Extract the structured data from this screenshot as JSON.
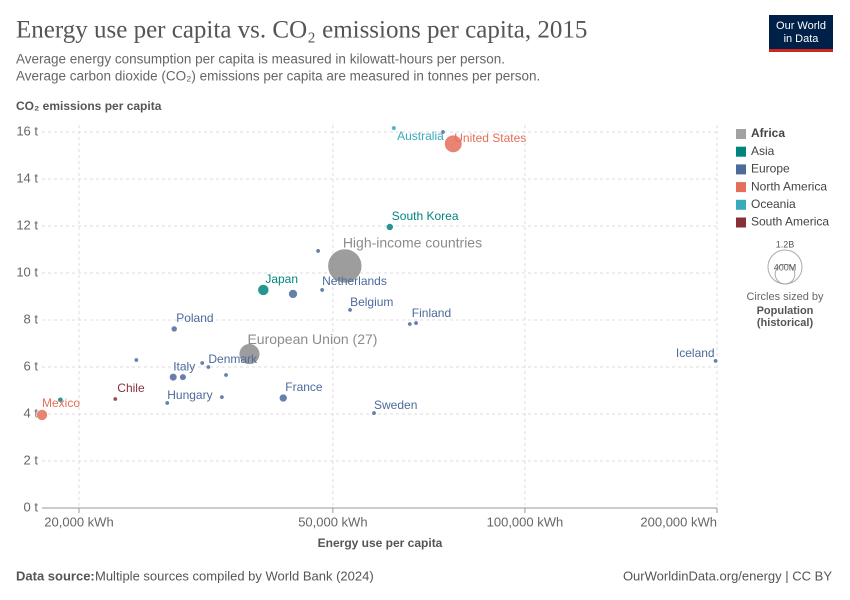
{
  "chart_data": {
    "type": "scatter",
    "title": "Energy use per capita vs. CO₂ emissions per capita, 2015",
    "subtitle": [
      "Average energy consumption per capita is measured in kilowatt-hours per person.",
      "Average carbon dioxide (CO₂) emissions per capita are measured in tonnes per person."
    ],
    "y_label": "CO₂ emissions per capita",
    "x_label": "Energy use per capita",
    "logo": [
      "Our World",
      "in Data"
    ],
    "source_label": "Data source:",
    "source": "Multiple sources compiled by World Bank (2024)",
    "url": "OurWorldinData.org/energy | CC BY",
    "x_scale": "log",
    "grid": true,
    "xlim": [
      17500,
      200000
    ],
    "ylim": [
      0,
      16.3
    ],
    "xticks": [
      {
        "value": 20000,
        "label": "20,000 kWh"
      },
      {
        "value": 50000,
        "label": "50,000 kWh"
      },
      {
        "value": 100000,
        "label": "100,000 kWh"
      },
      {
        "value": 200000,
        "label": "200,000 kWh"
      }
    ],
    "yticks": [
      {
        "value": 0,
        "label": "0 t"
      },
      {
        "value": 2,
        "label": "2 t"
      },
      {
        "value": 4,
        "label": "4 t"
      },
      {
        "value": 6,
        "label": "6 t"
      },
      {
        "value": 8,
        "label": "8 t"
      },
      {
        "value": 10,
        "label": "10 t"
      },
      {
        "value": 12,
        "label": "12 t"
      },
      {
        "value": 14,
        "label": "14 t"
      },
      {
        "value": 16,
        "label": "16 t"
      }
    ],
    "legend_position": "right",
    "series": [
      {
        "name": "Africa",
        "color": "#a2a2a2",
        "x": [],
        "values": [],
        "sizes": [],
        "labels": []
      },
      {
        "name": "Asia",
        "color": "#00847e",
        "x": [
          61400,
          38900,
          18700
        ],
        "values": [
          11.96,
          9.28,
          4.6
        ],
        "sizes": [
          51000000,
          127000000,
          30000000
        ],
        "labels": [
          "South Korea",
          "Japan",
          null
        ]
      },
      {
        "name": "Europe",
        "color": "#4c6a9c",
        "x": [
          74400,
          47400,
          48100,
          43300,
          53200,
          66000,
          67500,
          28200,
          31900,
          31200,
          24600,
          28100,
          29100,
          34000,
          199000,
          41800,
          58000,
          27500,
          33500
        ],
        "values": [
          16.0,
          10.94,
          9.28,
          9.11,
          8.43,
          7.83,
          7.87,
          7.62,
          6.0,
          6.17,
          6.3,
          5.57,
          5.57,
          5.66,
          6.26,
          4.68,
          4.04,
          4.47,
          4.72
        ],
        "sizes": [
          600000,
          2000000,
          2900000,
          82000000,
          11000000,
          5500000,
          5300000,
          38000000,
          5700000,
          10500000,
          2000000,
          60000000,
          46000000,
          2000000,
          330000,
          66000000,
          2100000,
          2000000,
          2000000
        ],
        "labels": [
          null,
          null,
          "Netherlands",
          null,
          "Belgium",
          "Finland",
          null,
          "Poland",
          "Denmark",
          null,
          null,
          "Italy",
          null,
          null,
          "Iceland",
          "France",
          "Sweden",
          "Hungary",
          null
        ]
      },
      {
        "name": "North America",
        "color": "#e56e5a",
        "x": [
          77200,
          17500
        ],
        "values": [
          15.5,
          3.96
        ],
        "sizes": [
          320000000,
          125000000
        ],
        "labels": [
          "United States",
          "Mexico"
        ]
      },
      {
        "name": "Oceania",
        "color": "#38aaba",
        "x": [
          62300
        ],
        "values": [
          16.17
        ],
        "sizes": [
          24000000
        ],
        "labels": [
          "Australia"
        ]
      },
      {
        "name": "South America",
        "color": "#883039",
        "x": [
          22800
        ],
        "values": [
          4.64
        ],
        "sizes": [
          1800000
        ],
        "labels": [
          "Chile"
        ]
      }
    ],
    "aggregates": {
      "color": "#8c8c8c",
      "x": [
        52200,
        37000
      ],
      "values": [
        10.3,
        6.55
      ],
      "sizes": [
        1200000000,
        445000000
      ],
      "labels": [
        "High-income countries",
        "European Union (27)"
      ]
    },
    "size_legend": {
      "ticks": [
        {
          "value": 1200000000,
          "label": "1.2B"
        },
        {
          "value": 400000000,
          "label": "400M"
        }
      ],
      "note": "Circles sized by",
      "variable": [
        "Population",
        "(historical)"
      ]
    }
  }
}
